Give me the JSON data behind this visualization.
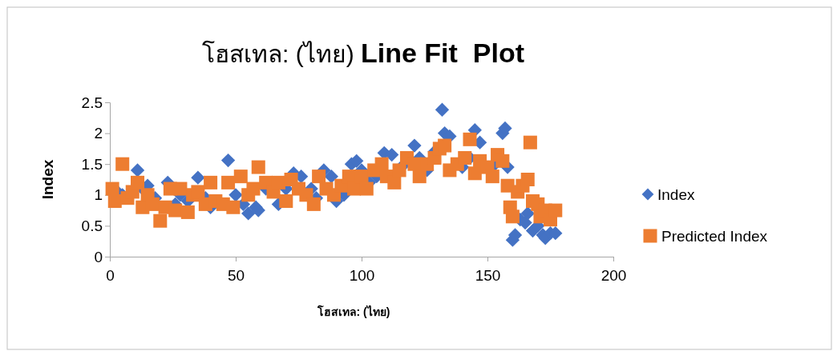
{
  "chart_data": {
    "type": "scatter",
    "title": "โฮสเทล: (ไทย) Line Fit  Plot",
    "xlabel": "โฮสเทล: (ไทย)",
    "ylabel": "Index",
    "xlim": [
      0,
      200
    ],
    "xticks": [
      0,
      50,
      100,
      150,
      200
    ],
    "ylim": [
      0,
      2.5
    ],
    "yticks": [
      0,
      0.5,
      1,
      1.5,
      2,
      2.5
    ],
    "legend": "right",
    "grid": false,
    "series": [
      {
        "name": "Index",
        "color": "#4472c4",
        "marker": "diamond",
        "x": [
          3,
          5,
          11,
          13,
          15,
          18,
          23,
          26,
          28,
          31,
          35,
          38,
          40,
          47,
          50,
          53,
          55,
          58,
          59,
          62,
          67,
          70,
          73,
          76,
          80,
          82,
          85,
          88,
          90,
          93,
          96,
          98,
          100,
          103,
          106,
          109,
          112,
          117,
          121,
          123,
          126,
          129,
          132,
          133,
          135,
          140,
          143,
          145,
          147,
          153,
          156,
          157,
          158,
          160,
          161,
          163,
          165,
          166,
          168,
          170,
          172,
          173,
          175,
          177
        ],
        "values": [
          1.05,
          1.0,
          1.4,
          1.1,
          1.15,
          0.95,
          1.2,
          0.85,
          1.0,
          0.9,
          1.28,
          0.95,
          0.8,
          1.56,
          1.0,
          0.85,
          0.7,
          0.8,
          0.75,
          1.1,
          0.85,
          1.1,
          1.35,
          1.3,
          1.1,
          0.95,
          1.4,
          1.3,
          0.9,
          1.0,
          1.5,
          1.55,
          1.4,
          1.2,
          1.3,
          1.68,
          1.65,
          1.5,
          1.8,
          1.6,
          1.4,
          1.7,
          2.38,
          2.0,
          1.95,
          1.45,
          1.6,
          2.05,
          1.85,
          1.5,
          2.0,
          2.08,
          1.45,
          0.27,
          0.35,
          0.6,
          0.55,
          0.7,
          0.42,
          0.5,
          0.35,
          0.3,
          0.38,
          0.38
        ]
      },
      {
        "name": "Predicted Index",
        "color": "#ed7d31",
        "marker": "square",
        "x": [
          1,
          2,
          5,
          7,
          9,
          11,
          13,
          15,
          17,
          20,
          22,
          24,
          26,
          28,
          31,
          33,
          35,
          38,
          40,
          42,
          45,
          47,
          49,
          52,
          55,
          57,
          59,
          62,
          65,
          67,
          70,
          72,
          75,
          78,
          81,
          83,
          86,
          89,
          92,
          95,
          97,
          100,
          102,
          105,
          108,
          110,
          113,
          115,
          118,
          121,
          123,
          126,
          129,
          131,
          133,
          135,
          138,
          141,
          143,
          145,
          147,
          150,
          152,
          154,
          156,
          158,
          159,
          160,
          162,
          164,
          166,
          167,
          168,
          170,
          171,
          173,
          175,
          177
        ],
        "values": [
          1.1,
          0.9,
          1.5,
          0.95,
          1.05,
          1.2,
          0.8,
          1.0,
          0.85,
          0.58,
          0.8,
          1.1,
          0.75,
          1.1,
          0.72,
          1.0,
          1.05,
          0.85,
          1.2,
          0.9,
          0.85,
          1.2,
          0.8,
          1.3,
          1.0,
          1.1,
          1.45,
          1.2,
          1.05,
          1.2,
          0.9,
          1.25,
          1.1,
          1.0,
          0.85,
          1.3,
          1.1,
          1.0,
          1.15,
          1.3,
          1.1,
          1.3,
          1.1,
          1.4,
          1.5,
          1.3,
          1.2,
          1.4,
          1.6,
          1.5,
          1.3,
          1.5,
          1.6,
          1.75,
          1.8,
          1.4,
          1.5,
          1.6,
          1.9,
          1.35,
          1.55,
          1.45,
          1.3,
          1.65,
          1.55,
          1.15,
          0.8,
          0.65,
          1.05,
          1.15,
          1.25,
          1.85,
          0.9,
          0.85,
          0.65,
          0.75,
          0.6,
          0.75
        ]
      }
    ]
  }
}
